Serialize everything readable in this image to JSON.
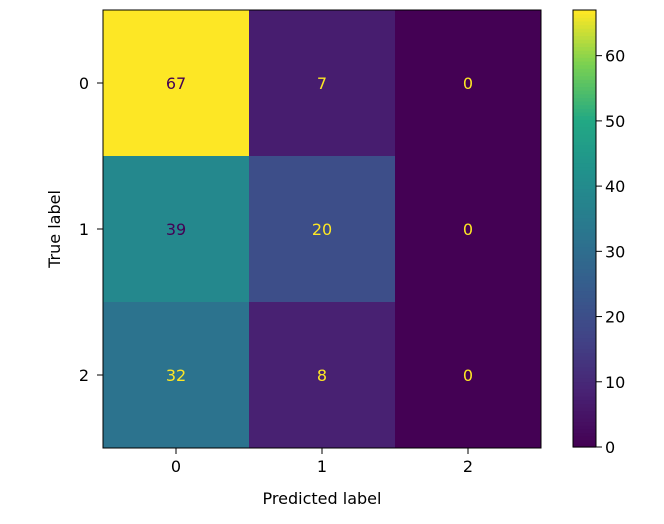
{
  "chart_data": [
    {
      "type": "heatmap",
      "title": "",
      "xlabel": "Predicted label",
      "ylabel": "True label",
      "x_categories": [
        "0",
        "1",
        "2"
      ],
      "y_categories": [
        "0",
        "1",
        "2"
      ],
      "matrix": [
        [
          67,
          7,
          0
        ],
        [
          39,
          20,
          0
        ],
        [
          32,
          8,
          0
        ]
      ],
      "colormap": "viridis",
      "colorbar": {
        "range": [
          0,
          67
        ],
        "ticks": [
          0,
          10,
          20,
          30,
          40,
          50,
          60
        ]
      },
      "grid": false
    }
  ]
}
